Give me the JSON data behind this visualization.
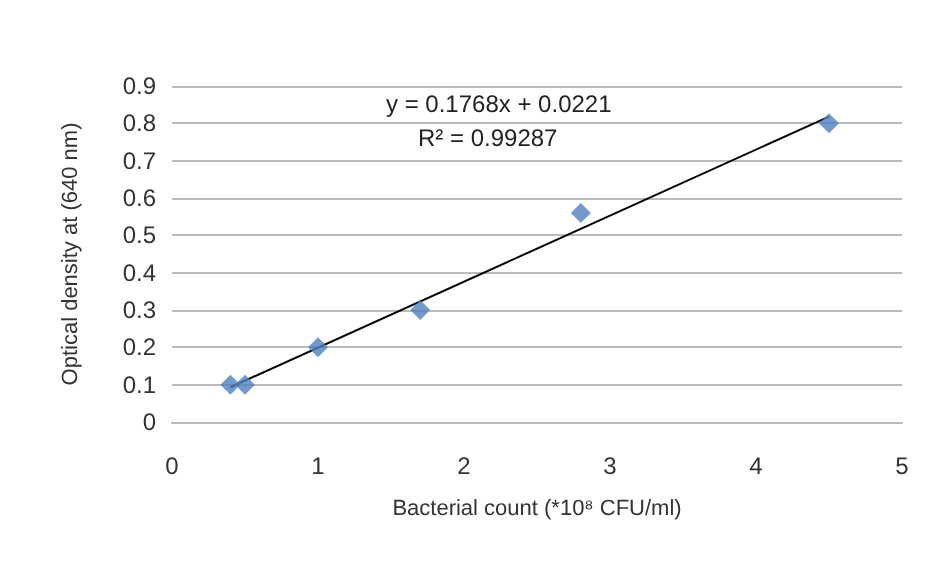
{
  "chart_data": {
    "type": "scatter",
    "xlabel": "Bacterial count (*10⁸ CFU/ml)",
    "ylabel": "Optical density at (640 nm)",
    "series": [
      {
        "color": "#4f81bd",
        "marker": "diamond",
        "x": [
          0.4,
          0.5,
          1.0,
          1.7,
          2.8,
          4.5
        ],
        "values": [
          0.1,
          0.1,
          0.2,
          0.3,
          0.56,
          0.8
        ]
      },
      {
        "type": "line",
        "color": "#000000",
        "marker": "none",
        "line_style": "solid",
        "x": [
          0.4,
          4.5
        ],
        "values": [
          0.093,
          0.818
        ]
      }
    ],
    "annotations": [
      "y = 0.1768x + 0.0221",
      "R² = 0.99287"
    ],
    "xlim": [
      0,
      5
    ],
    "xticks": [
      0,
      1,
      2,
      3,
      4,
      5
    ],
    "ylim": [
      0,
      0.9
    ],
    "yticks": [
      0,
      0.1,
      0.2,
      0.3,
      0.4,
      0.5,
      0.6,
      0.7,
      0.8,
      0.9
    ],
    "grid": "y"
  }
}
